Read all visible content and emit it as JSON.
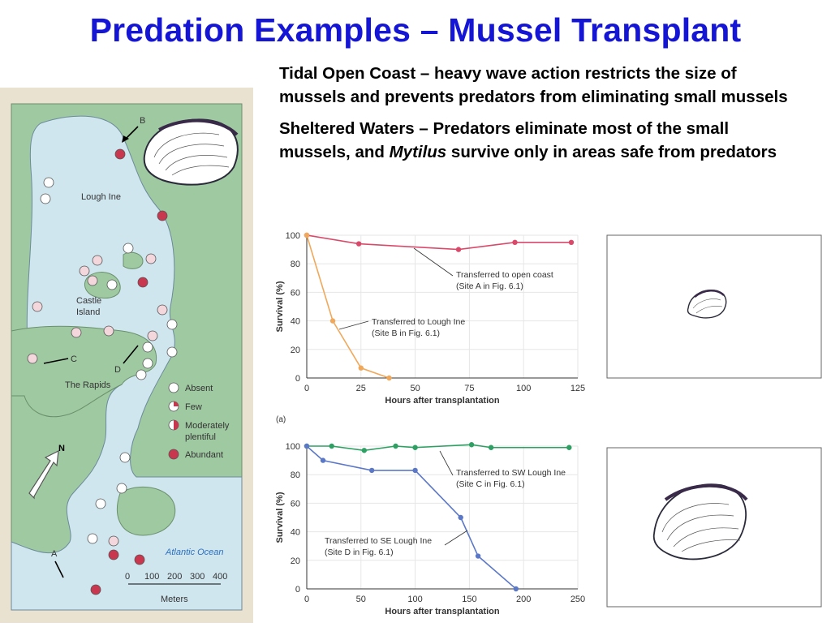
{
  "slide": {
    "title": "Predation Examples – Mussel Transplant",
    "bullet1": "Tidal Open Coast – heavy wave action restricts the size of mussels and prevents predators from eliminating small mussels",
    "bullet2_prefix": "Sheltered Waters – Predators eliminate most of the small mussels, and ",
    "bullet2_italic": "Mytilus",
    "bullet2_suffix": " survive only in areas safe from predators"
  },
  "map": {
    "labels": {
      "lough_ine": "Lough Ine",
      "castle_island_1": "Castle",
      "castle_island_2": "Island",
      "the_rapids": "The Rapids",
      "atlantic": "Atlantic Ocean",
      "north": "N",
      "site_a": "A",
      "site_b": "B",
      "site_c": "C",
      "site_d": "D"
    },
    "legend": {
      "absent": "Absent",
      "few": "Few",
      "moderately_1": "Moderately",
      "moderately_2": "plentiful",
      "abundant": "Abundant"
    },
    "scale": {
      "ticks": [
        "0",
        "100",
        "200",
        "300",
        "400"
      ],
      "unit": "Meters"
    },
    "colors": {
      "water": "#cfe6ef",
      "land": "#9fc9a1",
      "marker": "#c9374f"
    }
  },
  "chart_data": [
    {
      "type": "line",
      "label": "(a)",
      "xlabel": "Hours after transplantation",
      "ylabel": "Survival (%)",
      "xlim": [
        0,
        125
      ],
      "ylim": [
        0,
        100
      ],
      "xticks": [
        0,
        25,
        50,
        75,
        100,
        125
      ],
      "yticks": [
        0,
        20,
        40,
        60,
        80,
        100
      ],
      "grid": true,
      "series": [
        {
          "name": "Transferred to open coast",
          "name2": "(Site A in Fig. 6.1)",
          "color": "#d94a6a",
          "x": [
            0,
            24,
            70,
            96,
            122
          ],
          "y": [
            100,
            94,
            90,
            95,
            95
          ]
        },
        {
          "name": "Transferred to Lough Ine",
          "name2": "(Site B in Fig. 6.1)",
          "color": "#f0a85a",
          "x": [
            0,
            12,
            25,
            38
          ],
          "y": [
            100,
            40,
            7,
            0
          ]
        }
      ]
    },
    {
      "type": "line",
      "xlabel": "Hours after transplantation",
      "ylabel": "Survival (%)",
      "xlim": [
        0,
        250
      ],
      "ylim": [
        0,
        100
      ],
      "xticks": [
        0,
        50,
        100,
        150,
        200,
        250
      ],
      "yticks": [
        0,
        20,
        40,
        60,
        80,
        100
      ],
      "grid": true,
      "series": [
        {
          "name": "Transferred to SW Lough Ine",
          "name2": "(Site C in Fig. 6.1)",
          "color": "#2ea063",
          "x": [
            0,
            23,
            53,
            82,
            100,
            152,
            170,
            242
          ],
          "y": [
            100,
            100,
            97,
            100,
            99,
            101,
            99,
            99
          ]
        },
        {
          "name": "Transferred to SE Lough Ine",
          "name2": "(Site D in Fig. 6.1)",
          "color": "#5b78c8",
          "x": [
            0,
            15,
            60,
            100,
            142,
            158,
            193
          ],
          "y": [
            100,
            90,
            83,
            83,
            50,
            23,
            0
          ]
        }
      ]
    }
  ]
}
